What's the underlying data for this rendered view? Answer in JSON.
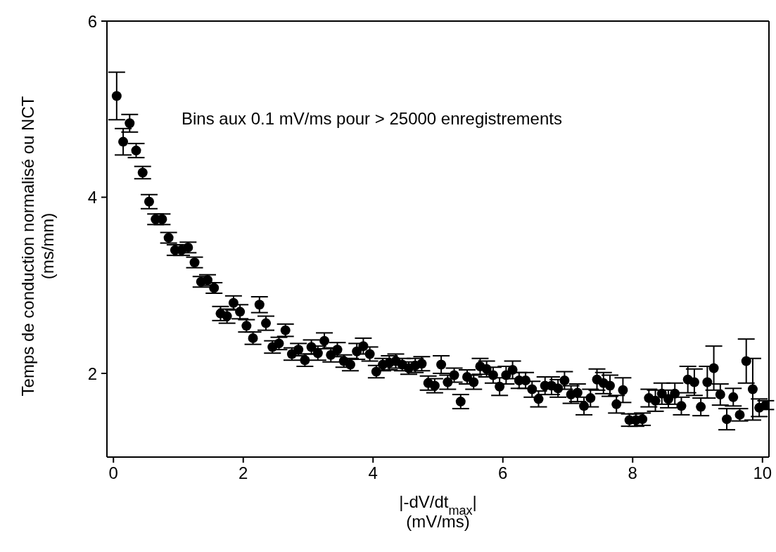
{
  "chart_data": {
    "type": "scatter",
    "xlabel": "|-dV/dt$_{max}$|\n(mV/ms)",
    "ylabel": "Temps de conduction normalisé ou NCT\n(ms/mm)",
    "annotations": [
      "Bins aux 0.1 mV/ms pour > 25000 enregistrements"
    ],
    "x": [
      0.05,
      0.15,
      0.25,
      0.35,
      0.45,
      0.55,
      0.65,
      0.75,
      0.85,
      0.95,
      1.05,
      1.15,
      1.25,
      1.35,
      1.45,
      1.55,
      1.65,
      1.75,
      1.85,
      1.95,
      2.05,
      2.15,
      2.25,
      2.35,
      2.45,
      2.55,
      2.65,
      2.75,
      2.85,
      2.95,
      3.05,
      3.15,
      3.25,
      3.35,
      3.45,
      3.55,
      3.65,
      3.75,
      3.85,
      3.95,
      4.05,
      4.15,
      4.25,
      4.35,
      4.45,
      4.55,
      4.65,
      4.75,
      4.85,
      4.95,
      5.05,
      5.15,
      5.25,
      5.35,
      5.45,
      5.55,
      5.65,
      5.75,
      5.85,
      5.95,
      6.05,
      6.15,
      6.25,
      6.35,
      6.45,
      6.55,
      6.65,
      6.75,
      6.85,
      6.95,
      7.05,
      7.15,
      7.25,
      7.35,
      7.45,
      7.55,
      7.65,
      7.75,
      7.85,
      7.95,
      8.05,
      8.15,
      8.25,
      8.35,
      8.45,
      8.55,
      8.65,
      8.75,
      8.85,
      8.95,
      9.05,
      9.15,
      9.25,
      9.35,
      9.45,
      9.55,
      9.65,
      9.75,
      9.85,
      9.95,
      10.05
    ],
    "series": [
      {
        "color": "#000000",
        "values": [
          5.15,
          4.63,
          4.84,
          4.53,
          4.28,
          3.95,
          3.75,
          3.75,
          3.54,
          3.4,
          3.4,
          3.43,
          3.26,
          3.04,
          3.06,
          2.97,
          2.68,
          2.65,
          2.8,
          2.7,
          2.54,
          2.4,
          2.78,
          2.57,
          2.3,
          2.34,
          2.49,
          2.22,
          2.27,
          2.15,
          2.3,
          2.23,
          2.37,
          2.21,
          2.27,
          2.14,
          2.1,
          2.25,
          2.31,
          2.22,
          2.02,
          2.1,
          2.12,
          2.14,
          2.1,
          2.06,
          2.09,
          2.11,
          1.89,
          1.86,
          2.1,
          1.9,
          1.98,
          1.68,
          1.96,
          1.9,
          2.08,
          2.05,
          1.98,
          1.85,
          1.98,
          2.04,
          1.92,
          1.92,
          1.82,
          1.71,
          1.86,
          1.86,
          1.83,
          1.92,
          1.76,
          1.78,
          1.63,
          1.72,
          1.93,
          1.89,
          1.86,
          1.65,
          1.81,
          1.47,
          1.47,
          1.48,
          1.72,
          1.69,
          1.77,
          1.71,
          1.77,
          1.63,
          1.93,
          1.9,
          1.62,
          1.9,
          2.06,
          1.76,
          1.48,
          1.73,
          1.53,
          2.14,
          1.82,
          1.61,
          1.64
        ],
        "errors": [
          0.27,
          0.15,
          0.1,
          0.08,
          0.07,
          0.08,
          0.06,
          0.06,
          0.06,
          0.06,
          0.06,
          0.06,
          0.06,
          0.06,
          0.06,
          0.06,
          0.08,
          0.08,
          0.08,
          0.08,
          0.07,
          0.07,
          0.09,
          0.08,
          0.07,
          0.07,
          0.07,
          0.07,
          0.07,
          0.07,
          0.08,
          0.08,
          0.09,
          0.08,
          0.08,
          0.07,
          0.07,
          0.09,
          0.09,
          0.08,
          0.07,
          0.07,
          0.08,
          0.08,
          0.07,
          0.07,
          0.08,
          0.08,
          0.08,
          0.08,
          0.1,
          0.08,
          0.08,
          0.08,
          0.08,
          0.08,
          0.09,
          0.09,
          0.09,
          0.1,
          0.1,
          0.1,
          0.09,
          0.09,
          0.09,
          0.09,
          0.1,
          0.1,
          0.1,
          0.1,
          0.1,
          0.1,
          0.1,
          0.1,
          0.12,
          0.12,
          0.12,
          0.1,
          0.14,
          0.07,
          0.07,
          0.07,
          0.1,
          0.12,
          0.12,
          0.1,
          0.12,
          0.1,
          0.15,
          0.15,
          0.1,
          0.18,
          0.25,
          0.12,
          0.12,
          0.1,
          0.07,
          0.25,
          0.35,
          0.1,
          0.05
        ]
      }
    ],
    "xlim": [
      -0.1,
      10.1
    ],
    "ylim": [
      1.05,
      6
    ],
    "xticks": [
      0,
      2,
      4,
      6,
      8,
      10
    ],
    "yticks": [
      2,
      4,
      6
    ],
    "grid": false,
    "marker": "circle"
  }
}
